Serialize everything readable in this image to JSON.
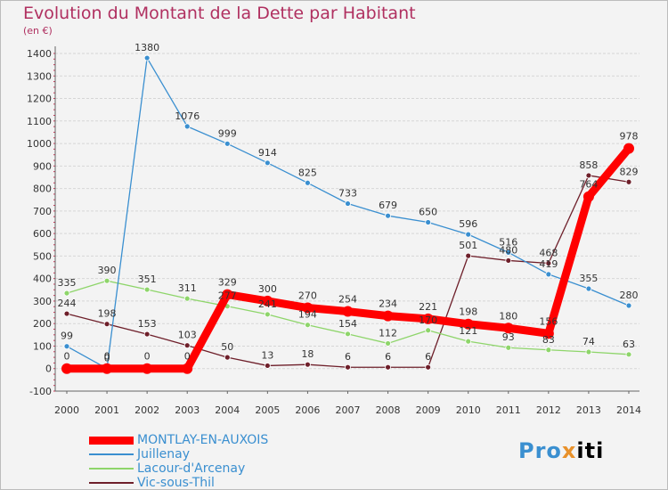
{
  "chart_data": {
    "type": "line",
    "title": "Evolution du Montant de la Dette par Habitant",
    "ylabel": "(en €)",
    "xlabel": "",
    "ylim": [
      -100,
      1400
    ],
    "yticks": [
      -100,
      0,
      100,
      200,
      300,
      400,
      500,
      600,
      700,
      800,
      900,
      1000,
      1100,
      1200,
      1300,
      1400
    ],
    "categories": [
      "2000",
      "2001",
      "2002",
      "2003",
      "2004",
      "2005",
      "2006",
      "2007",
      "2008",
      "2009",
      "2010",
      "2011",
      "2012",
      "2013",
      "2014"
    ],
    "grid": "horizontal",
    "series": [
      {
        "name": "MONTLAY-EN-AUXOIS",
        "color": "#ff0000",
        "values": [
          0,
          0,
          0,
          0,
          329,
          300,
          270,
          254,
          234,
          221,
          198,
          180,
          156,
          764,
          978
        ],
        "labels": [
          "0",
          "0",
          "0",
          "0",
          "329",
          "300",
          "270",
          "254",
          "234",
          "221",
          "198",
          "180",
          "156",
          "764",
          "978"
        ]
      },
      {
        "name": "Juillenay",
        "color": "#3a8fd0",
        "values": [
          99,
          0,
          1380,
          1076,
          999,
          914,
          825,
          733,
          679,
          650,
          596,
          516,
          419,
          355,
          280
        ],
        "labels": [
          "99",
          "0",
          "1380",
          "1076",
          "999",
          "914",
          "825",
          "733",
          "679",
          "650",
          "596",
          "516",
          "419",
          "355",
          "280"
        ]
      },
      {
        "name": "Lacour-d'Arcenay",
        "color": "#8ed56a",
        "values": [
          335,
          390,
          351,
          311,
          277,
          241,
          194,
          154,
          112,
          170,
          121,
          93,
          83,
          74,
          63
        ],
        "labels": [
          "335",
          "390",
          "351",
          "311",
          "277",
          "241",
          "194",
          "154",
          "112",
          "170",
          "121",
          "93",
          "83",
          "74",
          "63"
        ]
      },
      {
        "name": "Vic-sous-Thil",
        "color": "#6e1f2a",
        "values": [
          244,
          198,
          153,
          103,
          50,
          13,
          18,
          6,
          6,
          6,
          501,
          480,
          468,
          858,
          829
        ],
        "labels": [
          "244",
          "198",
          "153",
          "103",
          "50",
          "13",
          "18",
          "6",
          "6",
          "6",
          "501",
          "480",
          "468",
          "858",
          "829"
        ]
      }
    ]
  },
  "brand": {
    "part1": "Pro",
    "part2": "x",
    "part3": "iti"
  }
}
